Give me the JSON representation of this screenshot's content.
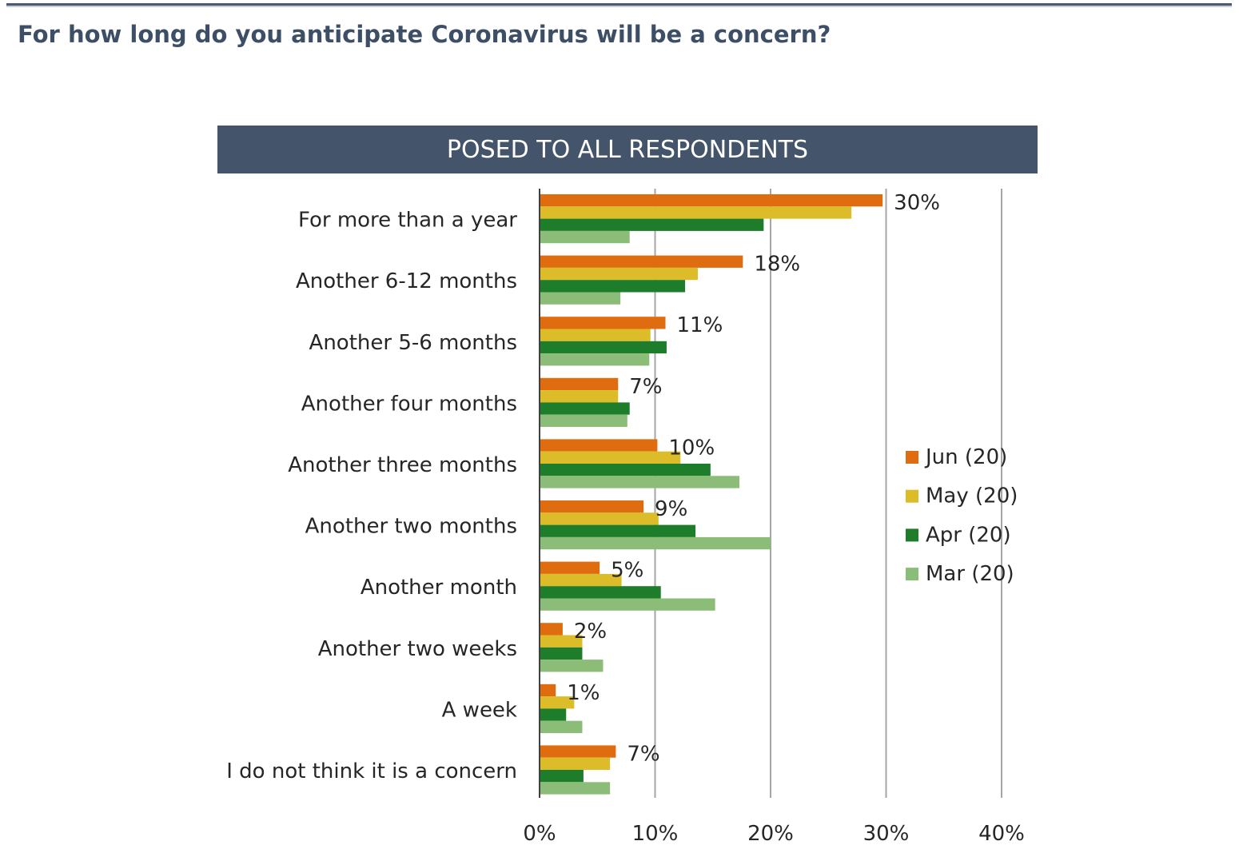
{
  "page": {
    "title": "For how long do you anticipate Coronavirus will be a concern?",
    "banner": "POSED TO ALL RESPONDENTS"
  },
  "chart_data": {
    "type": "bar",
    "orientation": "horizontal",
    "categories": [
      "For more than a year",
      "Another 6-12 months",
      "Another 5-6 months",
      "Another four months",
      "Another three months",
      "Another two months",
      "Another month",
      "Another two weeks",
      "A week",
      "I do not think it is a concern"
    ],
    "series": [
      {
        "name": "Jun (20)",
        "color": "#e06c10",
        "values": [
          29.7,
          17.6,
          10.9,
          6.8,
          10.2,
          9.0,
          5.2,
          2.0,
          1.4,
          6.6
        ]
      },
      {
        "name": "May (20)",
        "color": "#dcbc28",
        "values": [
          27.0,
          13.7,
          9.6,
          6.8,
          12.2,
          10.3,
          7.1,
          3.7,
          3.0,
          6.1
        ]
      },
      {
        "name": "Apr (20)",
        "color": "#1e7d2a",
        "values": [
          19.4,
          12.6,
          11.0,
          7.8,
          14.8,
          13.5,
          10.5,
          3.7,
          2.3,
          3.8
        ]
      },
      {
        "name": "Mar (20)",
        "color": "#8cbd78",
        "values": [
          7.8,
          7.0,
          9.5,
          7.6,
          17.3,
          20.0,
          15.2,
          5.5,
          3.7,
          6.1
        ]
      }
    ],
    "data_labels": [
      "30%",
      "18%",
      "11%",
      "7%",
      "10%",
      "9%",
      "5%",
      "2%",
      "1%",
      "7%"
    ],
    "x_ticks": [
      "0%",
      "10%",
      "20%",
      "30%",
      "40%"
    ],
    "xlim": [
      0,
      40
    ],
    "grid": true,
    "legend_position": "right"
  }
}
